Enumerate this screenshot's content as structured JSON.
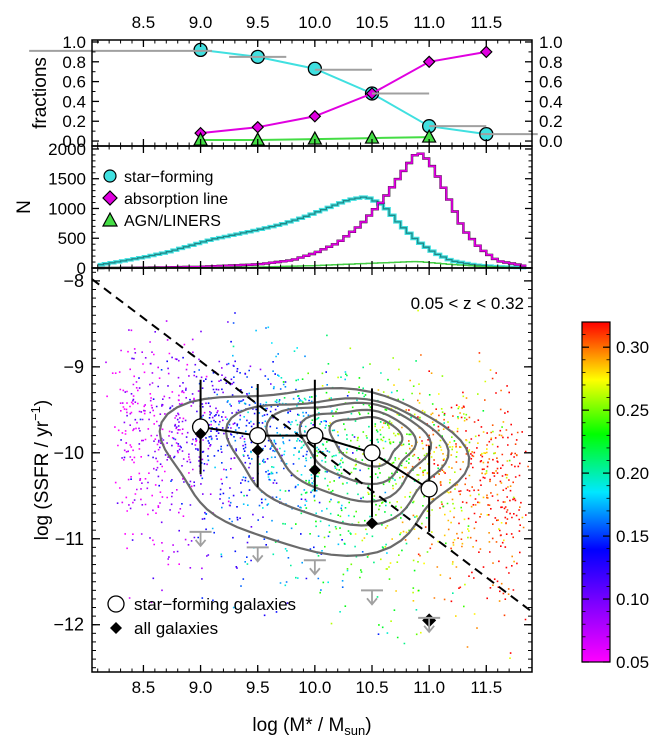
{
  "chart_data": [
    {
      "panel": "fractions",
      "type": "line",
      "ylabel": "fractions",
      "xlim": [
        8.05,
        11.9
      ],
      "ylim": [
        -0.05,
        1.02
      ],
      "x_ticks": [
        "8.5",
        "9.0",
        "9.5",
        "10.0",
        "10.5",
        "11.0",
        "11.5"
      ],
      "y_ticks": [
        "0.0",
        "0.2",
        "0.4",
        "0.6",
        "0.8",
        "1.0"
      ],
      "series": [
        {
          "name": "star-forming",
          "color": "#40e0e0",
          "marker": "circle",
          "x": [
            9.0,
            9.5,
            10.0,
            10.5,
            11.0,
            11.5
          ],
          "y": [
            0.92,
            0.85,
            0.73,
            0.48,
            0.15,
            0.07
          ]
        },
        {
          "name": "absorption line",
          "color": "#e000e0",
          "marker": "diamond",
          "x": [
            9.0,
            9.5,
            10.0,
            10.5,
            11.0,
            11.5
          ],
          "y": [
            0.08,
            0.14,
            0.25,
            0.48,
            0.8,
            0.9
          ]
        },
        {
          "name": "AGN/LINERS",
          "color": "#44dd44",
          "marker": "triangle",
          "x": [
            9.0,
            9.5,
            10.0,
            10.5,
            11.0
          ],
          "y": [
            0.01,
            0.01,
            0.02,
            0.03,
            0.04
          ]
        },
        {
          "name": "",
          "color": "#a0a0a0",
          "style": "horizontal-bars",
          "x": [
            8.3,
            9.5,
            10.25,
            10.75,
            11.25,
            11.7
          ],
          "xerr": [
            0.8,
            0.25,
            0.25,
            0.25,
            0.25,
            0.25
          ],
          "y": [
            0.91,
            0.85,
            0.72,
            0.48,
            0.15,
            0.07
          ]
        }
      ]
    },
    {
      "panel": "histogram",
      "type": "line",
      "ylabel": "N",
      "xlim": [
        8.05,
        11.9
      ],
      "ylim": [
        0,
        2050
      ],
      "y_ticks": [
        "0",
        "500",
        "1000",
        "1500",
        "2000"
      ],
      "legend": {
        "position": "top-left",
        "entries": [
          "star-forming",
          "absorption line",
          "AGN/LINERS"
        ]
      },
      "series": [
        {
          "name": "star-forming",
          "color": "#208888",
          "x": [
            8.1,
            8.3,
            8.5,
            8.7,
            8.9,
            9.1,
            9.3,
            9.5,
            9.7,
            9.9,
            10.1,
            10.3,
            10.45,
            10.6,
            10.75,
            10.9,
            11.05,
            11.2,
            11.4,
            11.6,
            11.85
          ],
          "y": [
            50,
            110,
            180,
            260,
            370,
            480,
            560,
            640,
            730,
            850,
            1000,
            1150,
            1200,
            1050,
            720,
            450,
            250,
            120,
            50,
            20,
            5
          ]
        },
        {
          "name": "absorption line",
          "color": "#e000e0",
          "x": [
            8.1,
            8.5,
            9.0,
            9.5,
            9.8,
            10.0,
            10.2,
            10.4,
            10.6,
            10.8,
            10.9,
            11.0,
            11.1,
            11.2,
            11.3,
            11.45,
            11.6,
            11.85
          ],
          "y": [
            0,
            5,
            20,
            60,
            130,
            250,
            420,
            720,
            1150,
            1700,
            1960,
            1800,
            1450,
            1050,
            650,
            320,
            120,
            30
          ]
        },
        {
          "name": "AGN/LINERS",
          "color": "#44cc44",
          "x": [
            8.1,
            9.0,
            9.5,
            10.0,
            10.5,
            10.9,
            11.2,
            11.5,
            11.85
          ],
          "y": [
            0,
            5,
            15,
            40,
            80,
            110,
            60,
            20,
            0
          ]
        }
      ]
    },
    {
      "panel": "ssfr-mass",
      "type": "scatter",
      "xlabel": "log (M* / Msun)",
      "ylabel": "log (SSFR / yr-1)",
      "annotation": "0.05 < z < 0.32",
      "xlim": [
        8.05,
        11.9
      ],
      "ylim": [
        -12.55,
        -7.85
      ],
      "x_ticks": [
        "8.5",
        "9.0",
        "9.5",
        "10.0",
        "10.5",
        "11.0",
        "11.5"
      ],
      "y_ticks": [
        "-8",
        "-9",
        "-10",
        "-11",
        "-12"
      ],
      "colorbar": {
        "range": [
          0.05,
          0.32
        ],
        "ticks": [
          "0.05",
          "0.10",
          "0.15",
          "0.20",
          "0.25",
          "0.30"
        ]
      },
      "dividing_line": {
        "x": [
          8.05,
          11.9
        ],
        "y": [
          -7.98,
          -11.85
        ]
      },
      "legend": {
        "position": "bottom-left",
        "entries": [
          "star-forming galaxies",
          "all galaxies"
        ]
      },
      "series": [
        {
          "name": "star-forming galaxies",
          "marker": "open-circle",
          "x": [
            9.0,
            9.5,
            10.0,
            10.5,
            11.0
          ],
          "y": [
            -9.7,
            -9.8,
            -9.8,
            -10.0,
            -10.42
          ],
          "yerr": [
            0.55,
            0.6,
            0.65,
            0.75,
            0.5
          ]
        },
        {
          "name": "all galaxies",
          "marker": "filled-diamond",
          "x": [
            9.0,
            9.5,
            10.0,
            10.5,
            11.0
          ],
          "y": [
            -9.78,
            -9.97,
            -10.2,
            -10.82,
            -11.95
          ]
        },
        {
          "name": "",
          "marker": "upper-limit-arrow",
          "color": "#a0a0a0",
          "x": [
            9.0,
            9.5,
            10.0,
            10.5,
            11.0
          ],
          "y": [
            -10.92,
            -11.1,
            -11.25,
            -11.6,
            -11.92
          ]
        }
      ]
    }
  ],
  "labels": {
    "fractions_ylabel": "fractions",
    "hist_ylabel": "N",
    "ssfr_ylabel_main": "log (SSFR / yr",
    "ssfr_ylabel_sup": "−1",
    "ssfr_ylabel_end": ")",
    "xlabel_main": "log (M* / M",
    "xlabel_sub": "sun",
    "xlabel_end": ")",
    "annotation": "0.05 < z < 0.32",
    "legend_sf": "star−forming",
    "legend_abs": "absorption line",
    "legend_agn": "AGN/LINERS",
    "legend_sfg": "star−forming galaxies",
    "legend_all": "all galaxies"
  }
}
